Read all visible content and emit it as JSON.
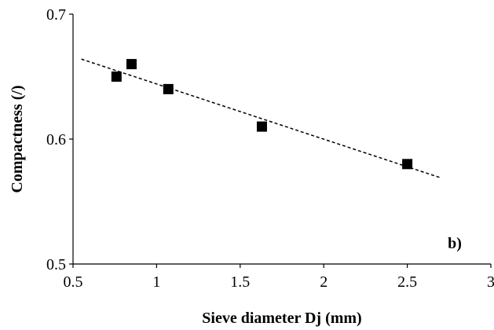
{
  "chart_data": {
    "type": "scatter",
    "xlabel": "Sieve diameter Dj (mm)",
    "ylabel": "Compactness (/)",
    "xlim": [
      0.5,
      3
    ],
    "ylim": [
      0.5,
      0.7
    ],
    "x_ticks": [
      "0.5",
      "1",
      "1.5",
      "2",
      "2.5",
      "3"
    ],
    "y_ticks": [
      "0.5",
      "0.6",
      "0.7"
    ],
    "x_tick_values": [
      0.5,
      1,
      1.5,
      2,
      2.5,
      3
    ],
    "y_tick_values": [
      0.5,
      0.6,
      0.7
    ],
    "grid": false,
    "annotation": "b)",
    "series": [
      {
        "marker": "square",
        "color": "#000000",
        "points": [
          {
            "x": 0.76,
            "y": 0.65
          },
          {
            "x": 0.85,
            "y": 0.66
          },
          {
            "x": 1.07,
            "y": 0.64
          },
          {
            "x": 1.63,
            "y": 0.61
          },
          {
            "x": 2.5,
            "y": 0.58
          }
        ]
      }
    ],
    "trendline": {
      "style": "dashed",
      "color": "#000000",
      "x_range": [
        0.55,
        2.7
      ],
      "y_range": [
        0.664,
        0.569
      ]
    }
  }
}
